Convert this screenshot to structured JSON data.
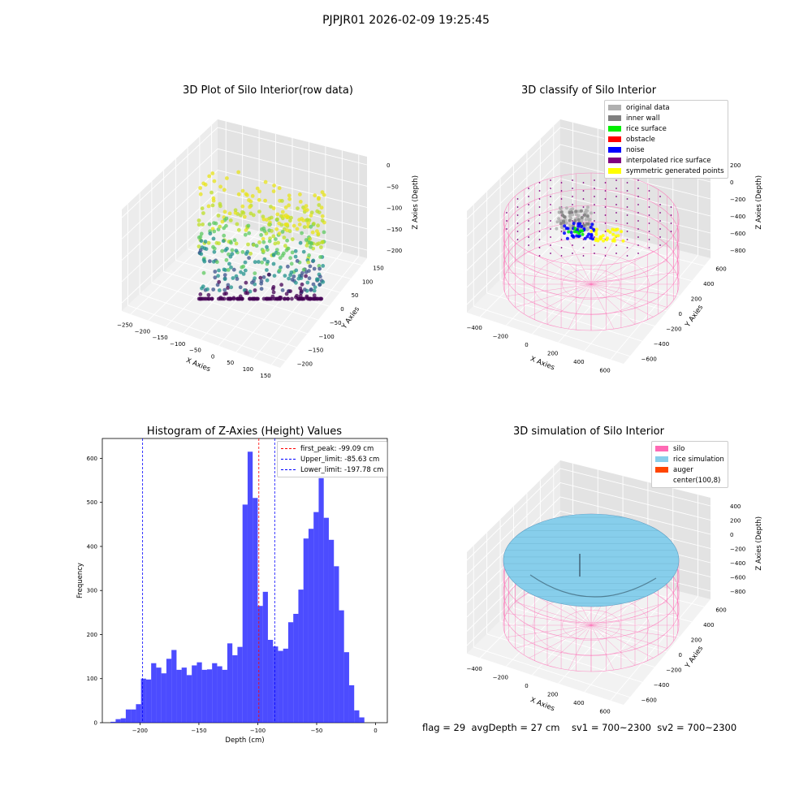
{
  "suptitle": "PJPJR01 2026-02-09 19:25:45",
  "footer": "flag = 29  avgDepth = 27 cm    sv1 = 700~2300  sv2 = 700~2300",
  "chart_data": [
    {
      "type": "scatter",
      "title": "3D Plot of Silo Interior(row data)",
      "xlabel": "X Axies",
      "ylabel": "Y Axies",
      "zlabel": "Z Axies (Depth)",
      "xticks": [
        "−250",
        "−200",
        "−150",
        "−100",
        "−50",
        "0",
        "50",
        "100",
        "150"
      ],
      "yticks": [
        "−200",
        "−150",
        "−100",
        "−50",
        "0",
        "50",
        "100",
        "150"
      ],
      "zticks": [
        "0",
        "−50",
        "−100",
        "−150",
        "−200"
      ],
      "colormap": "viridis"
    },
    {
      "type": "scatter",
      "title": "3D classify of Silo Interior",
      "xlabel": "X Axies",
      "ylabel": "Y Axies",
      "zlabel": "Z Axies (Depth)",
      "xticks": [
        "−400",
        "−200",
        "0",
        "200",
        "400",
        "600"
      ],
      "yticks": [
        "−600",
        "−400",
        "−200",
        "0",
        "200",
        "400",
        "600"
      ],
      "zticks": [
        "200",
        "0",
        "−200",
        "−400",
        "−600",
        "−800"
      ],
      "legend": [
        {
          "label": "original data",
          "color": "#b0b0b0"
        },
        {
          "label": "inner wall",
          "color": "#808080"
        },
        {
          "label": "rice surface",
          "color": "#00ee00"
        },
        {
          "label": "obstacle",
          "color": "#ff0000"
        },
        {
          "label": "noise",
          "color": "#0000ff"
        },
        {
          "label": "interpolated rice surface",
          "color": "#800080"
        },
        {
          "label": "symmetric generated points",
          "color": "#ffff00"
        }
      ]
    },
    {
      "type": "bar",
      "title": "Histogram of Z-Axies (Height) Values",
      "xlabel": "Depth (cm)",
      "ylabel": "Frequency",
      "xlim": [
        -232,
        10
      ],
      "ylim": [
        0,
        645
      ],
      "xticks": [
        -200,
        -150,
        -100,
        -50,
        0
      ],
      "xtick_labels": [
        "−200",
        "−150",
        "−100",
        "−50",
        "0"
      ],
      "yticks": [
        0,
        100,
        200,
        300,
        400,
        500,
        600
      ],
      "bin_start": -225,
      "bin_width": 4.31,
      "values": [
        2,
        8,
        10,
        30,
        30,
        42,
        100,
        98,
        135,
        125,
        112,
        145,
        165,
        120,
        125,
        108,
        130,
        137,
        120,
        121,
        135,
        128,
        120,
        180,
        153,
        172,
        495,
        615,
        510,
        265,
        297,
        188,
        173,
        163,
        168,
        228,
        247,
        302,
        418,
        440,
        478,
        555,
        465,
        415,
        355,
        255,
        160,
        85,
        28,
        12
      ],
      "color": "#0000ff",
      "vlines": [
        {
          "label": "first_peak: -99.09 cm",
          "x": -99.09,
          "color": "#ff0000"
        },
        {
          "label": "Upper_limit: -85.63 cm",
          "x": -85.63,
          "color": "#0000ff"
        },
        {
          "label": "Lower_limit: -197.78 cm",
          "x": -197.78,
          "color": "#0000ff"
        }
      ]
    },
    {
      "type": "surface",
      "title": "3D simulation of Silo Interior",
      "xlabel": "X Axies",
      "ylabel": "Y Axies",
      "zlabel": "Z Axies (Depth)",
      "xticks": [
        "−400",
        "−200",
        "0",
        "200",
        "400",
        "600"
      ],
      "yticks": [
        "−600",
        "−400",
        "−200",
        "0",
        "200",
        "400",
        "600"
      ],
      "zticks": [
        "400",
        "200",
        "0",
        "−200",
        "−400",
        "−600",
        "−800"
      ],
      "legend": [
        {
          "label": "silo",
          "color": "#ff69b4"
        },
        {
          "label": "rice simulation",
          "color": "#87ceeb"
        },
        {
          "label": "auger",
          "color": "#ff4500"
        },
        {
          "label": "center(100,8)",
          "color": ""
        }
      ]
    }
  ]
}
